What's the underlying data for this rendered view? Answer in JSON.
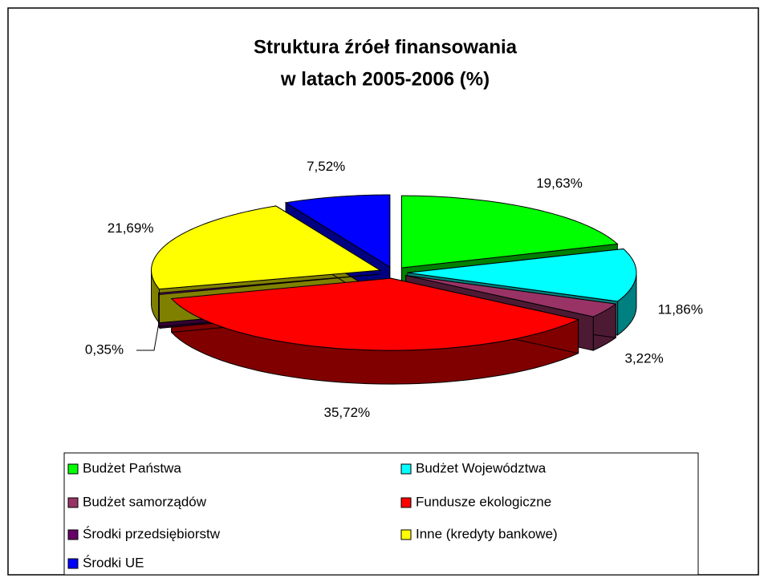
{
  "chart_data": {
    "type": "pie3d",
    "title": [
      "Struktura źróeł finansowania",
      "w latach 2005-2006 (%)"
    ],
    "categories": [
      "Budżet Państwa",
      "Budżet Województwa",
      "Budżet samorządów",
      "Fundusze ekologiczne",
      "Środki przedsiębiorstw",
      "Inne (kredyty bankowe)",
      "Środki UE"
    ],
    "values": [
      19.63,
      11.86,
      3.22,
      35.72,
      0.35,
      21.69,
      7.52
    ],
    "value_labels": [
      "19,63%",
      "11,86%",
      "3,22%",
      "35,72%",
      "0,35%",
      "21,69%",
      "7,52%"
    ],
    "colors": [
      "#00ff00",
      "#00ffff",
      "#993366",
      "#ff0000",
      "#660066",
      "#ffff00",
      "#0000ff"
    ],
    "legend": "bottom"
  }
}
